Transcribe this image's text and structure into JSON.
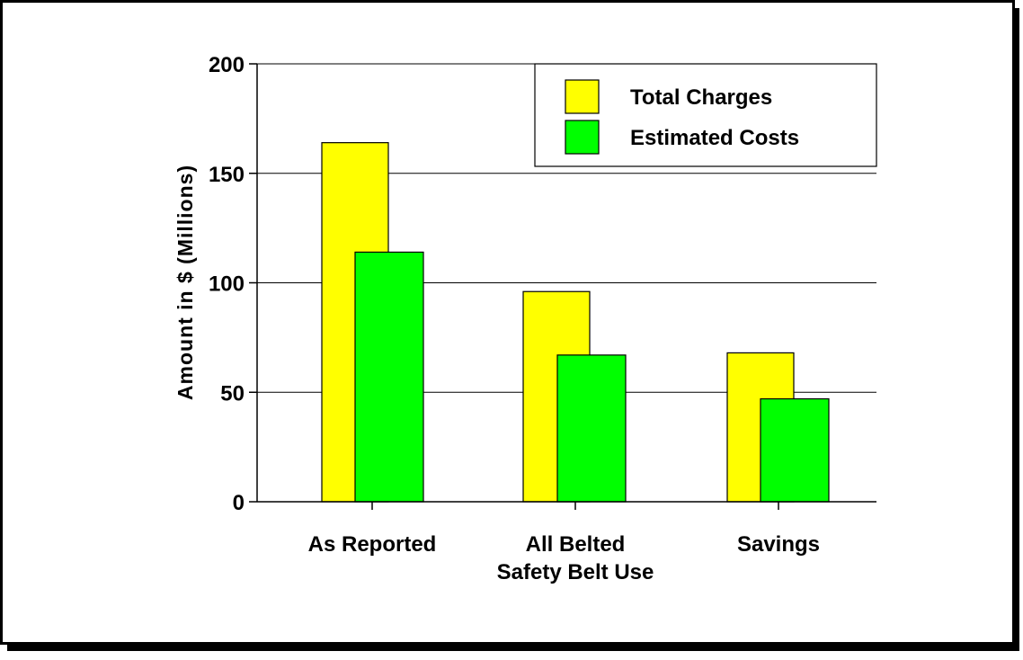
{
  "chart_data": {
    "type": "bar",
    "title": "",
    "xlabel": "",
    "ylabel": "Amount in $ (Millions)",
    "ylim": [
      0,
      200
    ],
    "yticks": [
      0,
      50,
      100,
      150,
      200
    ],
    "categories": [
      [
        "As Reported"
      ],
      [
        "All Belted",
        "Safety Belt Use"
      ],
      [
        "Savings"
      ]
    ],
    "series": [
      {
        "name": "Total Charges",
        "color": "#ffff00",
        "values": [
          164,
          96,
          68
        ]
      },
      {
        "name": "Estimated Costs",
        "color": "#00ff00",
        "values": [
          114,
          67,
          47
        ]
      }
    ],
    "grid": true,
    "legend_position": "top-right"
  }
}
